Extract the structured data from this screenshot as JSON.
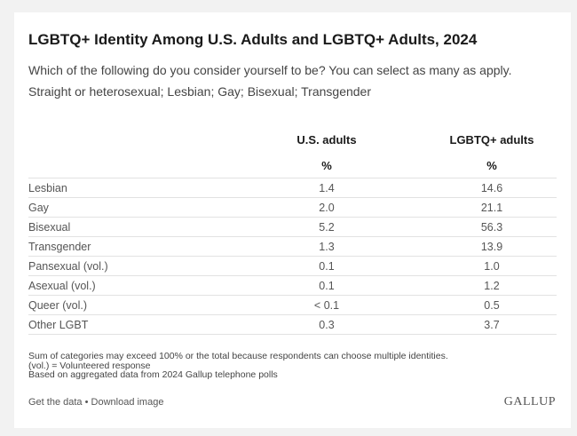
{
  "title": "LGBTQ+ Identity Among U.S. Adults and LGBTQ+ Adults, 2024",
  "question": "Which of the following do you consider yourself to be? You can select as many as apply.",
  "options": "Straight or heterosexual; Lesbian; Gay; Bisexual; Transgender",
  "columns": [
    {
      "header": "U.S. adults",
      "unit": "%"
    },
    {
      "header": "LGBTQ+ adults",
      "unit": "%"
    }
  ],
  "chart_data": {
    "type": "table",
    "title": "LGBTQ+ Identity Among U.S. Adults and LGBTQ+ Adults, 2024",
    "columns": [
      "U.S. adults",
      "LGBTQ+ adults"
    ],
    "rows": [
      {
        "label": "Lesbian",
        "values": [
          "1.4",
          "14.6"
        ]
      },
      {
        "label": "Gay",
        "values": [
          "2.0",
          "21.1"
        ]
      },
      {
        "label": "Bisexual",
        "values": [
          "5.2",
          "56.3"
        ]
      },
      {
        "label": "Transgender",
        "values": [
          "1.3",
          "13.9"
        ]
      },
      {
        "label": "Pansexual (vol.)",
        "values": [
          "0.1",
          "1.0"
        ]
      },
      {
        "label": "Asexual (vol.)",
        "values": [
          "0.1",
          "1.2"
        ]
      },
      {
        "label": "Queer (vol.)",
        "values": [
          "< 0.1",
          "0.5"
        ]
      },
      {
        "label": "Other LGBT",
        "values": [
          "0.3",
          "3.7"
        ]
      }
    ]
  },
  "notes": [
    "Sum of categories may exceed 100% or the total because respondents can choose multiple identities.",
    "(vol.) = Volunteered response",
    "Based on aggregated data from 2024 Gallup telephone polls"
  ],
  "footer": {
    "get_data": "Get the data",
    "separator": " • ",
    "download": "Download image"
  },
  "logo": "GALLUP"
}
